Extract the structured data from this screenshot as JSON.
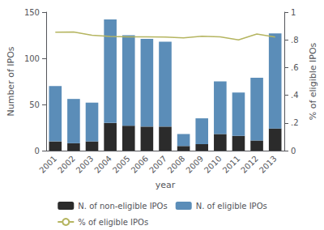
{
  "chart_data": {
    "type": "bar",
    "xlabel": "year",
    "ylabel": "Number of IPOs",
    "y2label": "% of eligible IPOs",
    "categories": [
      "2001",
      "2002",
      "2003",
      "2004",
      "2005",
      "2006",
      "2007",
      "2008",
      "2009",
      "2010",
      "2011",
      "2012",
      "2013"
    ],
    "series": [
      {
        "name": "N. of non-eligible IPOs",
        "color": "#2b2b2b",
        "values": [
          10,
          8,
          10,
          30,
          27,
          26,
          26,
          5,
          7,
          18,
          16,
          11,
          24
        ]
      },
      {
        "name": "N. of eligible IPOs",
        "color": "#5b8db8",
        "values": [
          60,
          48,
          42,
          112,
          98,
          95,
          92,
          13,
          28,
          57,
          47,
          68,
          103
        ]
      },
      {
        "name": "% of eligible IPOs",
        "type": "line",
        "axis": "y2",
        "color": "#b5b560",
        "values": [
          0.855,
          0.857,
          0.833,
          0.824,
          0.822,
          0.821,
          0.82,
          0.815,
          0.826,
          0.821,
          0.8,
          0.842,
          0.82
        ]
      }
    ],
    "ylim": [
      0,
      150
    ],
    "yticks": [
      0,
      50,
      100,
      150
    ],
    "y2lim": [
      0,
      1.0
    ],
    "y2ticks": [
      0,
      {
        "value": 0.2,
        "label": ".2"
      },
      {
        "value": 0.4,
        "label": ".4"
      },
      {
        "value": 0.6,
        "label": ".6"
      },
      {
        "value": 0.8,
        "label": ".8"
      },
      1
    ],
    "stacked": true,
    "grid": false,
    "legend": "bottom"
  }
}
